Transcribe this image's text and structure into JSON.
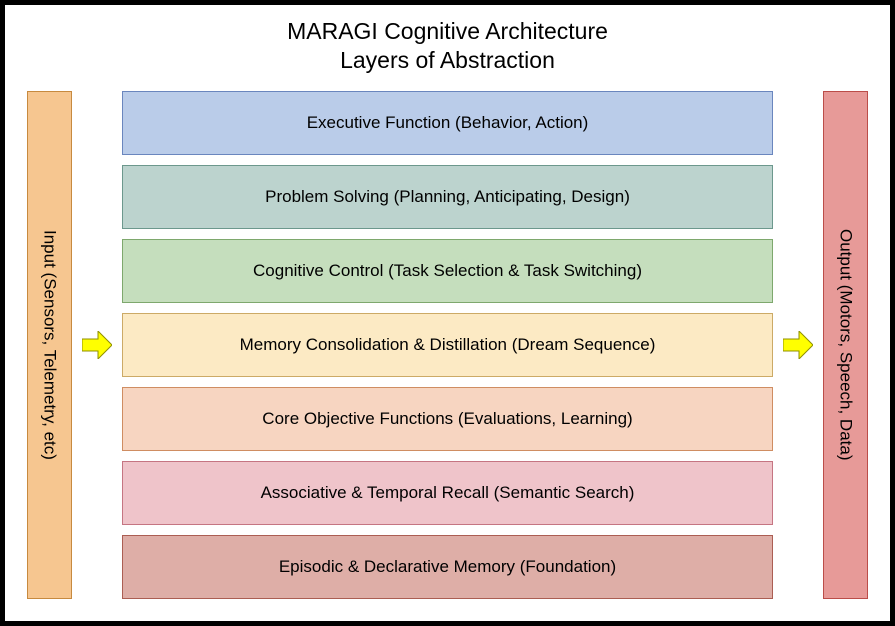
{
  "title": {
    "line1": "MARAGI Cognitive Architecture",
    "line2": "Layers of Abstraction",
    "fontsize": 23,
    "color": "#000000"
  },
  "frame": {
    "border_color": "#000000",
    "border_width": 5,
    "background": "#ffffff"
  },
  "input_column": {
    "label": "Input (Sensors, Telemetry, etc)",
    "fill": "#f6c690",
    "border": "#c78a3f",
    "width": 45
  },
  "output_column": {
    "label": "Output (Motors, Speech, Data)",
    "fill": "#e79a98",
    "border": "#bb4d49",
    "width": 45
  },
  "arrows": {
    "left": {
      "fill": "#ffff00",
      "stroke": "#8f8f00"
    },
    "right": {
      "fill": "#ffff00",
      "stroke": "#8f8f00"
    }
  },
  "layers": [
    {
      "label": "Executive Function (Behavior, Action)",
      "fill": "#bacce9",
      "border": "#6a86be"
    },
    {
      "label": "Problem Solving (Planning, Anticipating, Design)",
      "fill": "#bcd3ce",
      "border": "#6c988d"
    },
    {
      "label": "Cognitive Control (Task Selection & Task Switching)",
      "fill": "#c5debd",
      "border": "#7ea86d"
    },
    {
      "label": "Memory Consolidation & Distillation (Dream Sequence)",
      "fill": "#fceac4",
      "border": "#ccaa66"
    },
    {
      "label": "Core Objective Functions (Evaluations, Learning)",
      "fill": "#f7d5c1",
      "border": "#cf8d62"
    },
    {
      "label": "Associative & Temporal Recall (Semantic Search)",
      "fill": "#efc4ca",
      "border": "#c57582"
    },
    {
      "label": "Episodic & Declarative Memory (Foundation)",
      "fill": "#deaea7",
      "border": "#ab5e53"
    }
  ],
  "layer_fontsize": 17,
  "side_fontsize": 17
}
